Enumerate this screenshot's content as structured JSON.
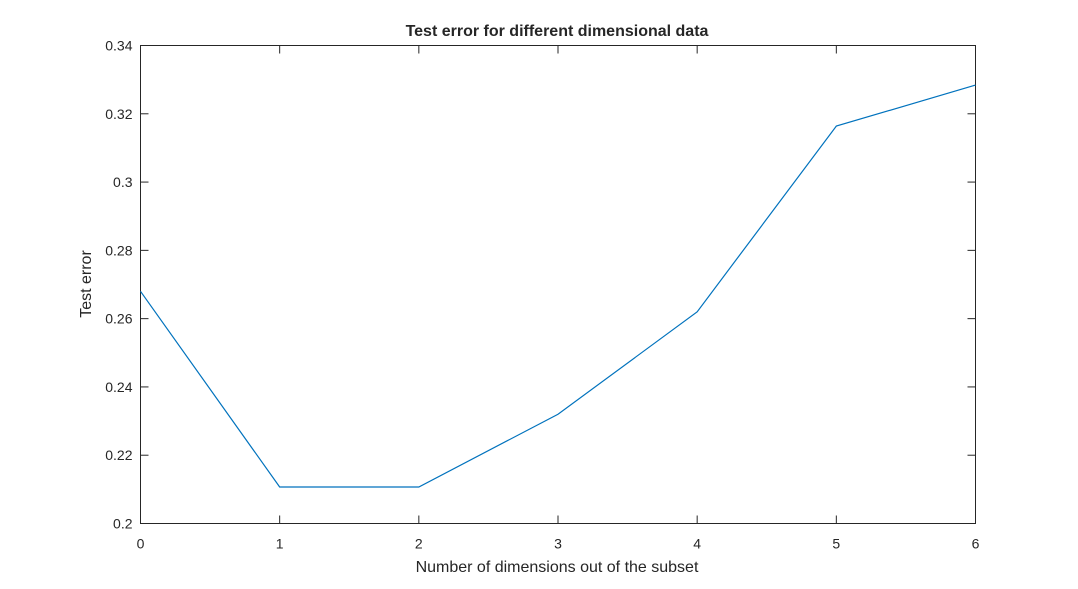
{
  "chart_data": {
    "type": "line",
    "title": "Test error for different dimensional data",
    "xlabel": "Number of dimensions out of the subset",
    "ylabel": "Test error",
    "xlim": [
      0,
      6
    ],
    "ylim": [
      0.2,
      0.34
    ],
    "x_ticks": [
      0,
      1,
      2,
      3,
      4,
      5,
      6
    ],
    "x_tick_labels": [
      "0",
      "1",
      "2",
      "3",
      "4",
      "5",
      "6"
    ],
    "y_ticks": [
      0.2,
      0.22,
      0.24,
      0.26,
      0.28,
      0.3,
      0.32,
      0.34
    ],
    "y_tick_labels": [
      "0.2",
      "0.22",
      "0.24",
      "0.26",
      "0.28",
      "0.3",
      "0.32",
      "0.34"
    ],
    "grid": false,
    "legend": "none",
    "series": [
      {
        "color": "#0072bd",
        "x": [
          0,
          1,
          2,
          3,
          4,
          5,
          6
        ],
        "y": [
          0.268,
          0.2107,
          0.2107,
          0.232,
          0.262,
          0.3164,
          0.3284
        ]
      }
    ]
  }
}
